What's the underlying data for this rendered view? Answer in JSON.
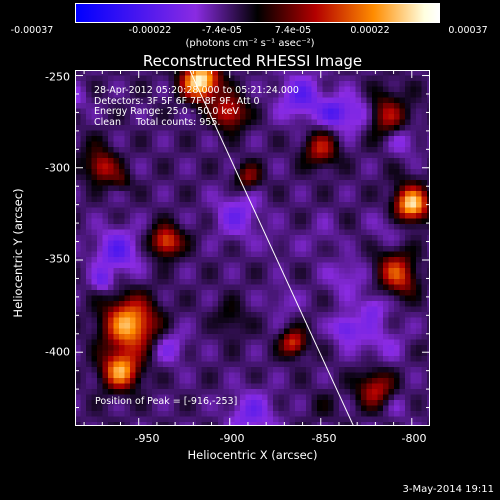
{
  "colorbar": {
    "unit_label": "(photons cm⁻² s⁻¹ asec⁻²)",
    "ticks": [
      "-0.00037",
      "-0.00022",
      "-7.4e-05",
      "7.4e-05",
      "0.00022",
      "0.00037"
    ],
    "range": [
      -0.00037,
      0.00037
    ],
    "colors": [
      "#0000ff",
      "#8a2be2",
      "#000000",
      "#b30000",
      "#ff8c00",
      "#ffffe0",
      "#ffffff"
    ]
  },
  "chart_data": {
    "type": "heatmap",
    "title": "Reconstructed RHESSI Image",
    "xlabel": "Heliocentric X (arcsec)",
    "ylabel": "Heliocentric Y (arcsec)",
    "xlim": [
      -985,
      -790
    ],
    "ylim": [
      -440,
      -247
    ],
    "x_ticks": [
      -950,
      -900,
      -850,
      -800
    ],
    "y_ticks": [
      -250,
      -300,
      -350,
      -400
    ],
    "peak": [
      -916,
      -253
    ],
    "limb_line": [
      [
        -922,
        -247
      ],
      [
        -832,
        -440
      ]
    ],
    "annotation": {
      "time_range": "28-Apr-2012 05:20:28.000 to 05:21:24.000",
      "detectors": "Detectors: 3F 5F 6F 7F 8F 9F, Att 0",
      "energy": "Energy Range: 25.0 - 50.0 keV",
      "method": "Clean     Total counts: 955.",
      "peak_text": "Position of Peak = [-916,-253]"
    }
  },
  "footer": {
    "date": "3-May-2014 19:11"
  }
}
